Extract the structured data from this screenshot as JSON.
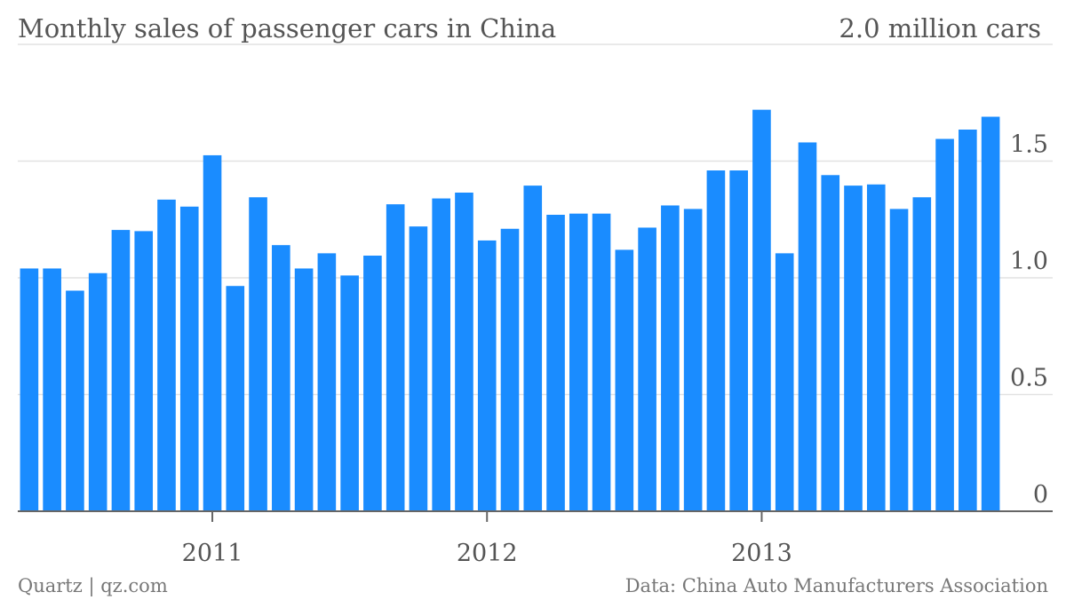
{
  "chart_data": {
    "type": "bar",
    "title": "Monthly sales of passenger cars in China",
    "unit_label": "2.0 million cars",
    "source": "Data: China Auto Manufacturers Association",
    "credit": "Quartz | qz.com",
    "ylim": [
      0,
      2.0
    ],
    "yticks": [
      "0",
      "0.5",
      "1.0",
      "1.5"
    ],
    "ytick_values": [
      0,
      0.5,
      1.0,
      1.5,
      2.0
    ],
    "xtick_labels": [
      {
        "label": "2011",
        "index": 8
      },
      {
        "label": "2012",
        "index": 20
      },
      {
        "label": "2013",
        "index": 32
      }
    ],
    "grid": true,
    "bar_color": "#1a8cff",
    "values": [
      1.04,
      1.04,
      0.945,
      1.02,
      1.205,
      1.2,
      1.335,
      1.305,
      1.525,
      0.965,
      1.345,
      1.14,
      1.04,
      1.105,
      1.01,
      1.095,
      1.315,
      1.22,
      1.34,
      1.365,
      1.16,
      1.21,
      1.395,
      1.27,
      1.275,
      1.275,
      1.12,
      1.215,
      1.31,
      1.295,
      1.46,
      1.46,
      1.72,
      1.105,
      1.58,
      1.44,
      1.395,
      1.4,
      1.295,
      1.345,
      1.595,
      1.635,
      1.69
    ]
  }
}
